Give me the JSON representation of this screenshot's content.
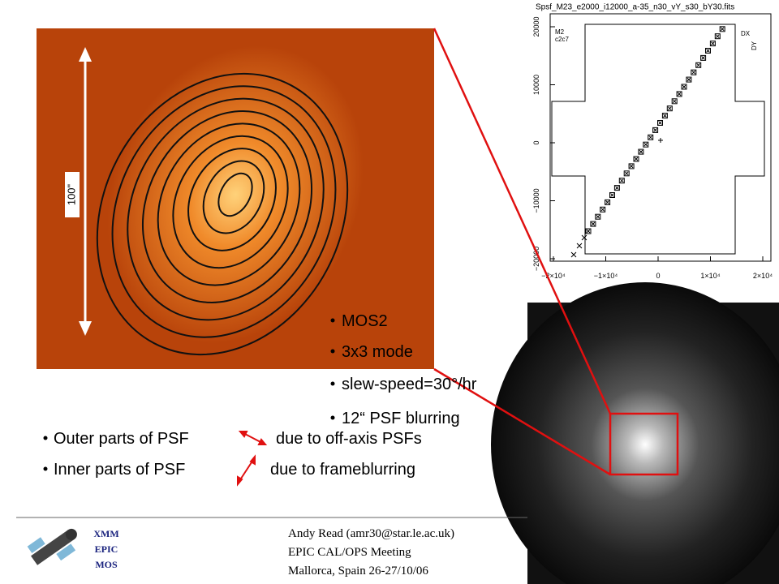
{
  "image_label": "100\"",
  "info_bullets": [
    "MOS2",
    "3x3 mode",
    "slew-speed=30°/hr",
    "12“ PSF blurring"
  ],
  "psf_notes": [
    {
      "left": "Outer parts of PSF",
      "right": "due to off-axis PSFs"
    },
    {
      "left": "Inner parts of PSF",
      "right": "due to frameblurring"
    }
  ],
  "plot": {
    "title": "Spsf_M23_e2000_i12000_a-35_n30_vY_s30_bY30.fits",
    "panel_labels": [
      "M2",
      "c2c7"
    ],
    "legend": [
      "DX",
      "DY"
    ],
    "yticks": [
      "20000",
      "10000",
      "0",
      "−10000",
      "−20000"
    ],
    "xticks": [
      "−2×10⁴",
      "−1×10⁴",
      "0",
      "1×10⁴",
      "2×10⁴"
    ]
  },
  "logo": [
    "XMM",
    "EPIC",
    "MOS"
  ],
  "footer": [
    "Andy Read (amr30@star.le.ac.uk)",
    "EPIC CAL/OPS Meeting",
    "Mallorca, Spain 26-27/10/06"
  ]
}
